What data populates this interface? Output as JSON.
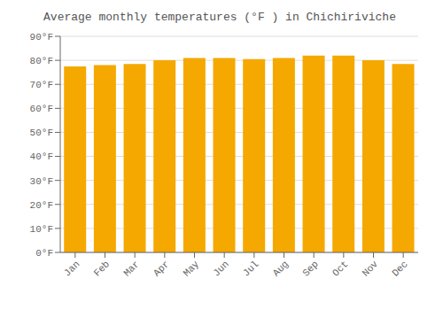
{
  "chart_data": {
    "type": "bar",
    "title": "Average monthly temperatures (°F ) in Chichiriviche",
    "categories": [
      "Jan",
      "Feb",
      "Mar",
      "Apr",
      "May",
      "Jun",
      "Jul",
      "Aug",
      "Sep",
      "Oct",
      "Nov",
      "Dec"
    ],
    "values": [
      77.5,
      78.0,
      78.5,
      80.0,
      81.0,
      81.0,
      80.5,
      81.0,
      82.0,
      82.0,
      80.0,
      78.5
    ],
    "color": "#F5A800",
    "ylim": [
      0,
      90
    ],
    "yticks": [
      {
        "value": 0,
        "label": "0°F"
      },
      {
        "value": 10,
        "label": "10°F"
      },
      {
        "value": 20,
        "label": "20°F"
      },
      {
        "value": 30,
        "label": "30°F"
      },
      {
        "value": 40,
        "label": "40°F"
      },
      {
        "value": 50,
        "label": "50°F"
      },
      {
        "value": 60,
        "label": "60°F"
      },
      {
        "value": 70,
        "label": "70°F"
      },
      {
        "value": 80,
        "label": "80°F"
      },
      {
        "value": 90,
        "label": "90°F"
      }
    ],
    "grid": true
  }
}
